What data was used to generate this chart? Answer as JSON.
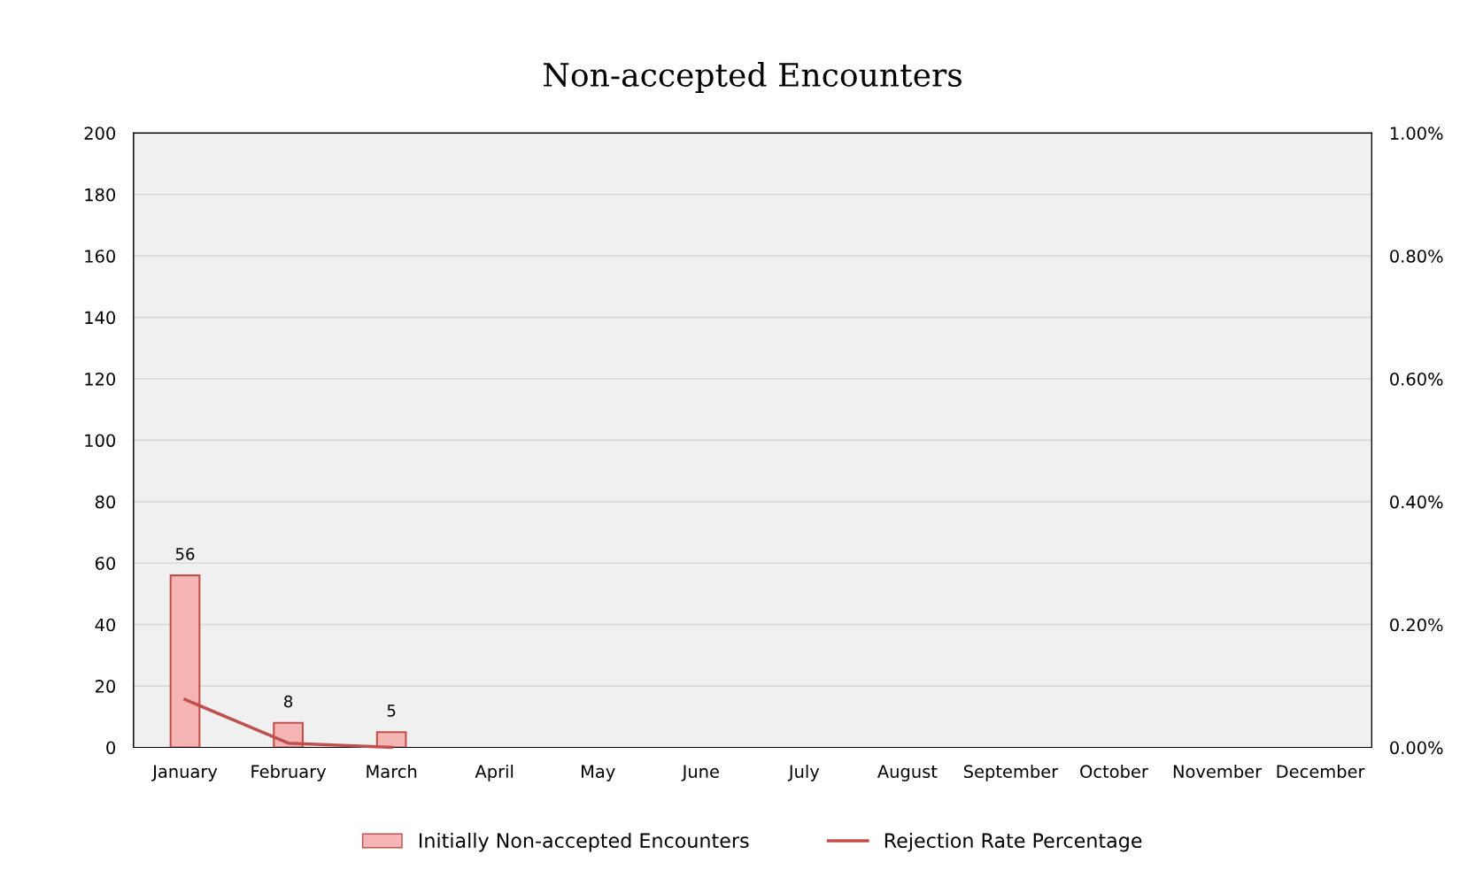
{
  "chart_data": {
    "type": "bar",
    "title": "Non-accepted Encounters",
    "categories": [
      "January",
      "February",
      "March",
      "April",
      "May",
      "June",
      "July",
      "August",
      "September",
      "October",
      "November",
      "December"
    ],
    "series": [
      {
        "name": "Initially Non-accepted Encounters",
        "color": "#f5b5b5",
        "values": [
          56,
          8,
          5,
          null,
          null,
          null,
          null,
          null,
          null,
          null,
          null,
          null
        ],
        "value_labels": [
          "56",
          "8",
          "5",
          null,
          null,
          null,
          null,
          null,
          null,
          null,
          null,
          null
        ]
      },
      {
        "name": "Rejection Rate Percentage",
        "type": "line",
        "axis": "y2",
        "color": "#c0504d",
        "values": [
          0.078,
          0.007,
          0.0,
          null,
          null,
          null,
          null,
          null,
          null,
          null,
          null,
          null
        ]
      }
    ],
    "ylim": [
      0,
      200
    ],
    "yticks": [
      0,
      20,
      40,
      60,
      80,
      100,
      120,
      140,
      160,
      180,
      200
    ],
    "y2lim": [
      0,
      1
    ],
    "y2ticks": [
      {
        "value": 0,
        "label": "0.00%"
      },
      {
        "value": 0.2,
        "label": "0.20%"
      },
      {
        "value": 0.4,
        "label": "0.40%"
      },
      {
        "value": 0.6,
        "label": "0.60%"
      },
      {
        "value": 0.8,
        "label": "0.80%"
      },
      {
        "value": 1,
        "label": "1.00%"
      }
    ],
    "grid": "y",
    "legend": "bottom",
    "marker": "none",
    "line_style": "solid"
  }
}
